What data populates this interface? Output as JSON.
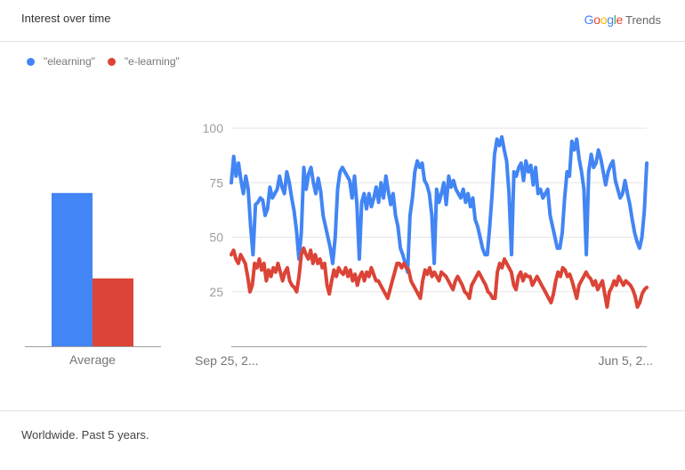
{
  "header": {
    "title": "Interest over time"
  },
  "brand": {
    "google_letters": [
      "G",
      "o",
      "o",
      "g",
      "l",
      "e"
    ],
    "google_colors": [
      "#4285f4",
      "#ea4335",
      "#fbbc05",
      "#4285f4",
      "#34a853",
      "#ea4335"
    ],
    "trends": "Trends"
  },
  "footer": {
    "text": "Worldwide. Past 5 years."
  },
  "chart_data": [
    {
      "type": "bar",
      "categories": [
        "Average"
      ],
      "series": [
        {
          "name": "\"elearning\"",
          "color": "#4285f4",
          "values": [
            70
          ]
        },
        {
          "name": "\"e-learning\"",
          "color": "#db4437",
          "values": [
            31
          ]
        }
      ],
      "ylim": [
        0,
        100
      ]
    },
    {
      "type": "line",
      "x_tick_labels": [
        "Sep 25, 2...",
        "Jun 5, 2..."
      ],
      "y_ticks": [
        25,
        50,
        75,
        100
      ],
      "ylim": [
        0,
        100
      ],
      "grid": true,
      "legend": "top-left",
      "series": [
        {
          "name": "\"elearning\"",
          "color": "#4285f4",
          "values": [
            75,
            87,
            78,
            84,
            76,
            70,
            78,
            72,
            55,
            42,
            65,
            66,
            68,
            67,
            60,
            63,
            73,
            68,
            70,
            72,
            78,
            73,
            70,
            80,
            75,
            68,
            62,
            53,
            40,
            52,
            82,
            72,
            79,
            82,
            75,
            70,
            77,
            71,
            60,
            55,
            50,
            45,
            38,
            50,
            72,
            80,
            82,
            80,
            78,
            76,
            68,
            78,
            65,
            40,
            66,
            70,
            63,
            70,
            64,
            68,
            73,
            66,
            75,
            68,
            78,
            71,
            65,
            70,
            60,
            55,
            45,
            42,
            38,
            34,
            60,
            68,
            80,
            85,
            82,
            84,
            76,
            74,
            70,
            60,
            38,
            72,
            66,
            70,
            75,
            65,
            78,
            73,
            76,
            72,
            70,
            68,
            72,
            66,
            70,
            64,
            68,
            58,
            55,
            50,
            45,
            42,
            42,
            55,
            70,
            88,
            95,
            92,
            96,
            90,
            85,
            70,
            42,
            80,
            78,
            82,
            84,
            76,
            85,
            80,
            83,
            74,
            82,
            70,
            72,
            68,
            70,
            72,
            60,
            55,
            50,
            45,
            45,
            52,
            68,
            80,
            78,
            94,
            90,
            95,
            86,
            80,
            72,
            42,
            80,
            88,
            82,
            84,
            90,
            86,
            80,
            74,
            80,
            83,
            85,
            76,
            72,
            68,
            70,
            76,
            70,
            65,
            58,
            52,
            48,
            45,
            50,
            62,
            84
          ]
        },
        {
          "name": "\"e-learning\"",
          "color": "#db4437",
          "values": [
            42,
            44,
            40,
            38,
            42,
            40,
            38,
            32,
            25,
            28,
            38,
            36,
            40,
            35,
            38,
            30,
            35,
            32,
            36,
            34,
            38,
            34,
            30,
            34,
            36,
            30,
            28,
            27,
            25,
            32,
            42,
            45,
            42,
            40,
            44,
            38,
            42,
            38,
            40,
            36,
            38,
            28,
            24,
            30,
            35,
            32,
            36,
            34,
            33,
            36,
            32,
            35,
            30,
            33,
            28,
            32,
            34,
            30,
            34,
            32,
            36,
            33,
            30,
            30,
            28,
            26,
            24,
            22,
            26,
            30,
            34,
            38,
            38,
            36,
            38,
            36,
            35,
            30,
            28,
            26,
            24,
            22,
            30,
            35,
            33,
            36,
            32,
            34,
            32,
            30,
            34,
            33,
            32,
            30,
            28,
            26,
            30,
            32,
            30,
            28,
            25,
            24,
            22,
            28,
            30,
            32,
            34,
            32,
            30,
            28,
            25,
            24,
            22,
            22,
            34,
            38,
            36,
            40,
            38,
            36,
            34,
            28,
            26,
            32,
            34,
            30,
            33,
            32,
            32,
            28,
            30,
            32,
            30,
            28,
            26,
            24,
            22,
            20,
            24,
            30,
            34,
            32,
            36,
            35,
            32,
            33,
            30,
            26,
            22,
            28,
            30,
            32,
            34,
            32,
            31,
            28,
            30,
            26,
            28,
            30,
            24,
            18,
            25,
            27,
            30,
            28,
            32,
            30,
            28,
            30,
            29,
            28,
            26,
            23,
            18,
            20,
            24,
            26,
            27
          ]
        }
      ]
    }
  ]
}
